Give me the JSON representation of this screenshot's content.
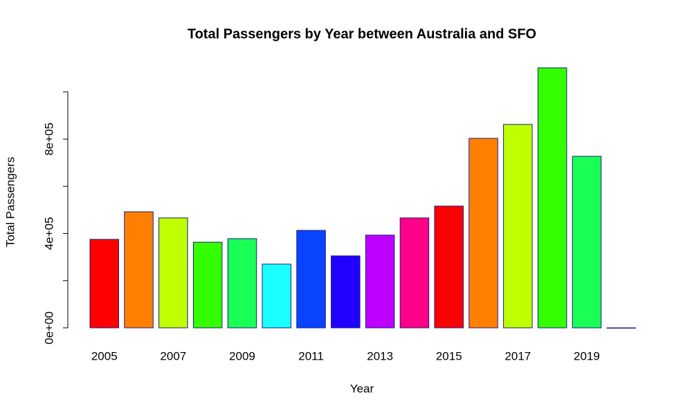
{
  "chart_data": {
    "type": "bar",
    "title": "Total  Passengers by Year between Australia and SFO",
    "x_label": "Year",
    "y_label": "Total Passengers",
    "categories": [
      "2005",
      null,
      "2007",
      null,
      "2009",
      null,
      "2011",
      null,
      "2013",
      null,
      "2015",
      null,
      "2017",
      null,
      "2019",
      null
    ],
    "values": [
      375000,
      492000,
      466000,
      363000,
      378000,
      270000,
      413000,
      305000,
      393000,
      466000,
      516000,
      803000,
      862000,
      1102000,
      727000,
      0
    ],
    "colors": [
      "#FF0000",
      "#FF8000",
      "#BFFF00",
      "#33FF00",
      "#1AFF55",
      "#1AFFFF",
      "#0A44FF",
      "#2200FF",
      "#BF00FF",
      "#FF0088",
      "#FF0000",
      "#FF8000",
      "#BFFF00",
      "#33FF00",
      "#1AFF55",
      "#1AFFFF"
    ],
    "border_color": "#1A1A80",
    "ylim": [
      -44000,
      1146000
    ],
    "yticks": [
      {
        "value": 0,
        "label": "0e+00"
      },
      {
        "value": 400000,
        "label": "4e+05"
      },
      {
        "value": 800000,
        "label": "8e+05"
      }
    ],
    "yticks_minor": [
      200000,
      600000,
      1000000
    ],
    "grid": false
  }
}
